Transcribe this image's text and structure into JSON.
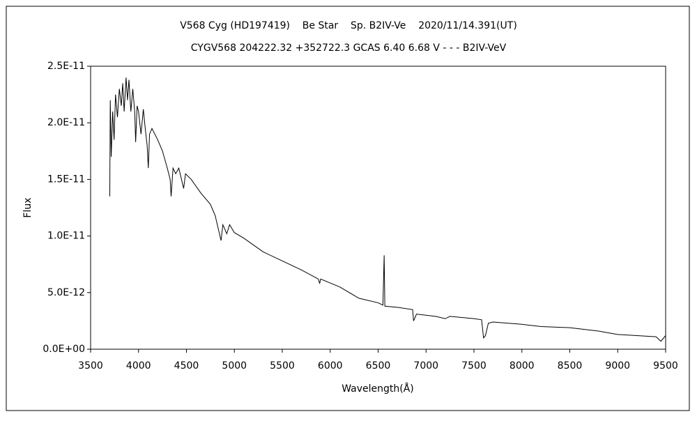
{
  "chart_data": {
    "type": "line",
    "title": "V568 Cyg (HD197419)    Be Star    Sp. B2IV-Ve    2020/11/14.391(UT)",
    "subtitle": "CYGV568 204222.32 +352722.3 GCAS 6.40 6.68 V - - - B2IV-VeV",
    "x_label": "Wavelength(Å)",
    "y_label": "Flux",
    "color": "#000000",
    "x": [
      3700,
      3705,
      3715,
      3730,
      3745,
      3760,
      3780,
      3800,
      3820,
      3835,
      3850,
      3870,
      3885,
      3900,
      3920,
      3940,
      3960,
      3970,
      3985,
      4000,
      4026,
      4050,
      4070,
      4090,
      4102,
      4115,
      4140,
      4170,
      4200,
      4250,
      4300,
      4330,
      4340,
      4360,
      4388,
      4420,
      4471,
      4490,
      4550,
      4650,
      4750,
      4800,
      4861,
      4880,
      4921,
      4950,
      5000,
      5100,
      5200,
      5300,
      5500,
      5700,
      5876,
      5890,
      5900,
      6100,
      6280,
      6300,
      6500,
      6550,
      6563,
      6570,
      6700,
      6860,
      6870,
      6900,
      7100,
      7200,
      7250,
      7500,
      7580,
      7600,
      7620,
      7650,
      7700,
      8000,
      8200,
      8500,
      8800,
      9000,
      9200,
      9400,
      9450,
      9500
    ],
    "values": [
      1.35e-11,
      2.2e-11,
      1.7e-11,
      2.1e-11,
      1.85e-11,
      2.25e-11,
      2.05e-11,
      2.3e-11,
      2.15e-11,
      2.35e-11,
      2.1e-11,
      2.4e-11,
      2.2e-11,
      2.38e-11,
      2.1e-11,
      2.3e-11,
      2.1e-11,
      1.83e-11,
      2.15e-11,
      2.1e-11,
      1.9e-11,
      2.12e-11,
      1.95e-11,
      1.8e-11,
      1.6e-11,
      1.9e-11,
      1.95e-11,
      1.9e-11,
      1.85e-11,
      1.75e-11,
      1.6e-11,
      1.5e-11,
      1.35e-11,
      1.6e-11,
      1.55e-11,
      1.6e-11,
      1.42e-11,
      1.55e-11,
      1.5e-11,
      1.38e-11,
      1.28e-11,
      1.18e-11,
      9.6e-12,
      1.1e-11,
      1.02e-11,
      1.1e-11,
      1.03e-11,
      9.8e-12,
      9.2e-12,
      8.6e-12,
      7.8e-12,
      7e-12,
      6.2e-12,
      5.8e-12,
      6.2e-12,
      5.5e-12,
      4.6e-12,
      4.5e-12,
      4.1e-12,
      3.9e-12,
      8.3e-12,
      3.8e-12,
      3.7e-12,
      3.5e-12,
      2.5e-12,
      3.1e-12,
      2.9e-12,
      2.7e-12,
      2.9e-12,
      2.7e-12,
      2.6e-12,
      1e-12,
      1.2e-12,
      2.3e-12,
      2.4e-12,
      2.2e-12,
      2e-12,
      1.9e-12,
      1.6e-12,
      1.3e-12,
      1.2e-12,
      1.1e-12,
      7e-13,
      1.2e-12
    ],
    "xlim": [
      3500,
      9500
    ],
    "xticks": [
      3500,
      4000,
      4500,
      5000,
      5500,
      6000,
      6500,
      7000,
      7500,
      8000,
      8500,
      9000,
      9500
    ],
    "ylim": [
      0,
      2.5e-11
    ],
    "yticks": [
      {
        "value": 0,
        "label": "0.0E+00"
      },
      {
        "value": 5e-12,
        "label": "5.0E-12"
      },
      {
        "value": 1e-11,
        "label": "1.0E-11"
      },
      {
        "value": 1.5e-11,
        "label": "1.5E-11"
      },
      {
        "value": 2e-11,
        "label": "2.0E-11"
      },
      {
        "value": 2.5e-11,
        "label": "2.5E-11"
      }
    ],
    "grid": false
  }
}
